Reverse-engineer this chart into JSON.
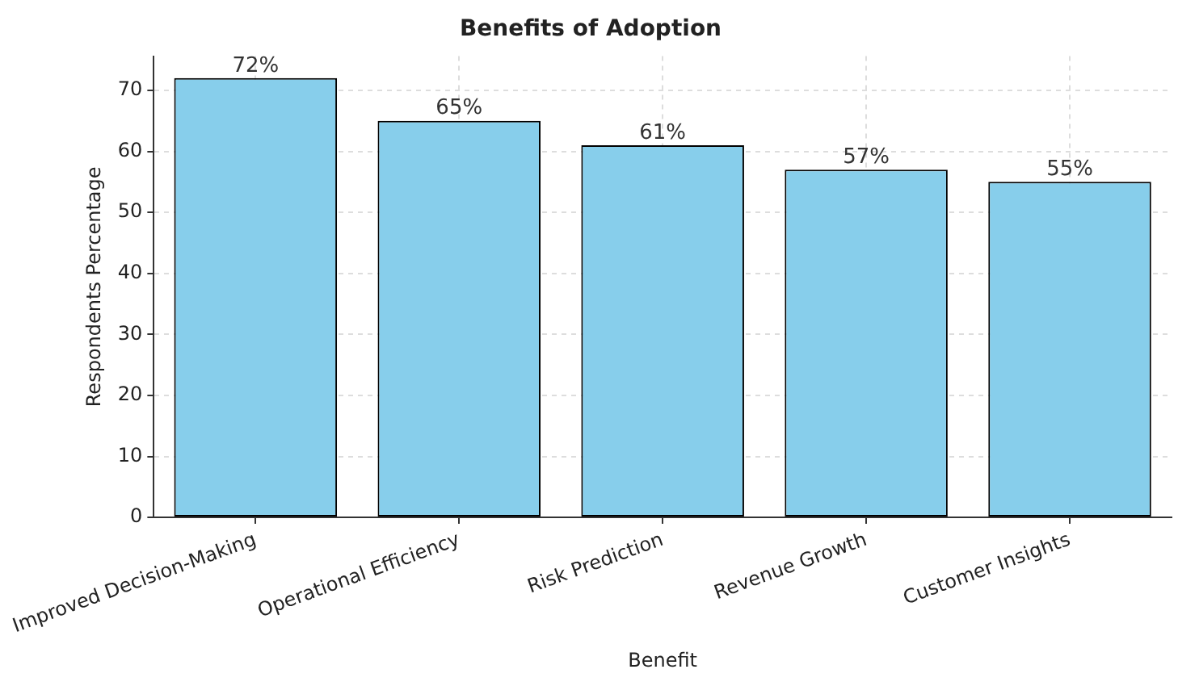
{
  "chart_data": {
    "type": "bar",
    "title": "Benefits of Adoption",
    "xlabel": "Benefit",
    "ylabel": "Respondents Percentage",
    "categories": [
      "Improved Decision-Making",
      "Operational Efficiency",
      "Risk Prediction",
      "Revenue Growth",
      "Customer Insights"
    ],
    "values": [
      72,
      65,
      61,
      57,
      55
    ],
    "value_labels": [
      "72%",
      "65%",
      "61%",
      "57%",
      "55%"
    ],
    "color": "#87ceeb",
    "ylim": [
      0,
      75.6
    ],
    "yticks": [
      0,
      10,
      20,
      30,
      40,
      50,
      60,
      70
    ],
    "grid": true,
    "legend": false
  }
}
